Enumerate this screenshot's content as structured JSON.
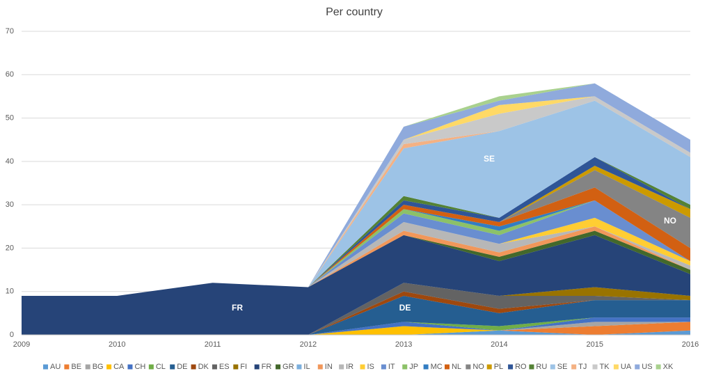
{
  "chart_data": {
    "type": "stacked_area",
    "title": "Per country",
    "categories": [
      "2009",
      "2010",
      "2011",
      "2012",
      "2013",
      "2014",
      "2015",
      "2016"
    ],
    "ylim": [
      0,
      70
    ],
    "yticks": [
      0,
      10,
      20,
      30,
      40,
      50,
      60,
      70
    ],
    "grid": true,
    "legend": "bottom",
    "annotations": [
      "FR",
      "DE",
      "SE",
      "NO"
    ],
    "series": [
      {
        "name": "AU",
        "color": "#5b9bd5",
        "values": [
          0,
          0,
          0,
          0,
          0,
          1,
          0,
          1
        ]
      },
      {
        "name": "BE",
        "color": "#ed7d31",
        "values": [
          0,
          0,
          0,
          0,
          0,
          0,
          2,
          2
        ]
      },
      {
        "name": "BG",
        "color": "#a5a5a5",
        "values": [
          0,
          0,
          0,
          0,
          0,
          0,
          1,
          0
        ]
      },
      {
        "name": "CA",
        "color": "#ffc000",
        "values": [
          0,
          0,
          0,
          0,
          2,
          0,
          0,
          0
        ]
      },
      {
        "name": "CH",
        "color": "#4472c4",
        "values": [
          0,
          0,
          0,
          0,
          1,
          0,
          1,
          1
        ]
      },
      {
        "name": "CL",
        "color": "#70ad47",
        "values": [
          0,
          0,
          0,
          0,
          0,
          1,
          0,
          0
        ]
      },
      {
        "name": "DE",
        "color": "#255e91",
        "values": [
          0,
          0,
          0,
          0,
          6,
          3,
          4,
          4
        ]
      },
      {
        "name": "DK",
        "color": "#9e480e",
        "values": [
          0,
          0,
          0,
          0,
          1,
          1,
          0,
          0
        ]
      },
      {
        "name": "ES",
        "color": "#636363",
        "values": [
          0,
          0,
          0,
          0,
          2,
          3,
          1,
          0
        ]
      },
      {
        "name": "FI",
        "color": "#997300",
        "values": [
          0,
          0,
          0,
          0,
          0,
          0,
          2,
          1
        ]
      },
      {
        "name": "FR",
        "color": "#264478",
        "values": [
          9,
          9,
          12,
          11,
          11,
          8,
          12,
          5
        ]
      },
      {
        "name": "GR",
        "color": "#43682b",
        "values": [
          0,
          0,
          0,
          0,
          0,
          1,
          1,
          1
        ]
      },
      {
        "name": "IL",
        "color": "#7cafdd",
        "values": [
          0,
          0,
          0,
          0,
          0,
          0,
          0,
          0
        ]
      },
      {
        "name": "IN",
        "color": "#f1975a",
        "values": [
          0,
          0,
          0,
          0,
          1,
          1,
          1,
          0
        ]
      },
      {
        "name": "IR",
        "color": "#b7b7b7",
        "values": [
          0,
          0,
          0,
          0,
          2,
          2,
          0,
          1
        ]
      },
      {
        "name": "IS",
        "color": "#ffcd33",
        "values": [
          0,
          0,
          0,
          0,
          0,
          0,
          2,
          1
        ]
      },
      {
        "name": "IT",
        "color": "#698ed0",
        "values": [
          0,
          0,
          0,
          0,
          2,
          2,
          4,
          0
        ]
      },
      {
        "name": "JP",
        "color": "#8cc168",
        "values": [
          0,
          0,
          0,
          0,
          1,
          1,
          0,
          0
        ]
      },
      {
        "name": "MC",
        "color": "#327dc2",
        "values": [
          0,
          0,
          0,
          0,
          0,
          1,
          0,
          0
        ]
      },
      {
        "name": "NL",
        "color": "#d26012",
        "values": [
          0,
          0,
          0,
          0,
          1,
          1,
          3,
          3
        ]
      },
      {
        "name": "NO",
        "color": "#848484",
        "values": [
          0,
          0,
          0,
          0,
          0,
          0,
          4,
          7
        ]
      },
      {
        "name": "PL",
        "color": "#cc9a00",
        "values": [
          0,
          0,
          0,
          0,
          0,
          0,
          1,
          2
        ]
      },
      {
        "name": "RO",
        "color": "#2f5597",
        "values": [
          0,
          0,
          0,
          0,
          1,
          1,
          2,
          0
        ]
      },
      {
        "name": "RU",
        "color": "#548235",
        "values": [
          0,
          0,
          0,
          0,
          1,
          0,
          0,
          1
        ]
      },
      {
        "name": "SE",
        "color": "#9dc3e6",
        "values": [
          0,
          0,
          0,
          0,
          11,
          20,
          13,
          11
        ]
      },
      {
        "name": "TJ",
        "color": "#f4b183",
        "values": [
          0,
          0,
          0,
          0,
          1,
          0,
          0,
          0
        ]
      },
      {
        "name": "TK",
        "color": "#c9c9c9",
        "values": [
          0,
          0,
          0,
          0,
          1,
          4,
          1,
          1
        ]
      },
      {
        "name": "UA",
        "color": "#ffd966",
        "values": [
          0,
          0,
          0,
          0,
          0,
          2,
          0,
          0
        ]
      },
      {
        "name": "US",
        "color": "#8faadc",
        "values": [
          0,
          0,
          0,
          0,
          3,
          1,
          3,
          3
        ]
      },
      {
        "name": "XK",
        "color": "#a9d18e",
        "values": [
          0,
          0,
          0,
          0,
          0,
          1,
          0,
          0
        ]
      }
    ]
  }
}
